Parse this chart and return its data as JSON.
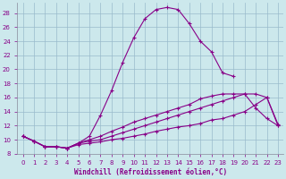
{
  "xlabel": "Windchill (Refroidissement éolien,°C)",
  "xlim": [
    -0.5,
    23.5
  ],
  "ylim": [
    8,
    29.5
  ],
  "xticks": [
    0,
    1,
    2,
    3,
    4,
    5,
    6,
    7,
    8,
    9,
    10,
    11,
    12,
    13,
    14,
    15,
    16,
    17,
    18,
    19,
    20,
    21,
    22,
    23
  ],
  "yticks": [
    8,
    10,
    12,
    14,
    16,
    18,
    20,
    22,
    24,
    26,
    28
  ],
  "bg_color": "#cce8ec",
  "line_color": "#880088",
  "grid_color": "#99bbcc",
  "c1x": [
    0,
    1,
    2,
    3,
    4,
    5,
    6,
    7,
    8,
    9,
    10,
    11,
    12,
    13,
    14,
    15,
    16,
    17,
    18,
    19
  ],
  "c1y": [
    10.5,
    9.8,
    9.0,
    9.0,
    8.8,
    9.5,
    10.5,
    13.5,
    17.0,
    21.0,
    24.5,
    27.2,
    28.5,
    28.8,
    28.5,
    26.5,
    24.0,
    22.5,
    19.5,
    19.0
  ],
  "c2x": [
    0,
    1,
    2,
    3,
    4,
    5,
    6,
    7,
    8,
    9,
    10,
    11,
    12,
    13,
    14,
    15,
    16,
    17,
    18,
    19,
    20,
    21,
    22,
    23
  ],
  "c2y": [
    10.5,
    9.8,
    9.0,
    9.0,
    8.8,
    9.5,
    10.0,
    10.5,
    11.2,
    11.8,
    12.5,
    13.0,
    13.5,
    14.0,
    14.5,
    15.0,
    15.8,
    16.2,
    16.5,
    16.5,
    16.5,
    14.5,
    13.0,
    12.0
  ],
  "c3x": [
    0,
    1,
    2,
    3,
    4,
    5,
    6,
    7,
    8,
    9,
    10,
    11,
    12,
    13,
    14,
    15,
    16,
    17,
    18,
    19,
    20,
    21,
    22,
    23
  ],
  "c3y": [
    10.5,
    9.8,
    9.0,
    9.0,
    8.8,
    9.5,
    9.8,
    10.0,
    10.5,
    11.0,
    11.5,
    12.0,
    12.5,
    13.0,
    13.5,
    14.0,
    14.5,
    15.0,
    15.5,
    16.0,
    16.5,
    16.5,
    16.0,
    12.2
  ],
  "c4x": [
    0,
    1,
    2,
    3,
    4,
    5,
    6,
    7,
    8,
    9,
    10,
    11,
    12,
    13,
    14,
    15,
    16,
    17,
    18,
    19,
    20,
    21,
    22,
    23
  ],
  "c4y": [
    10.5,
    9.8,
    9.0,
    9.0,
    8.8,
    9.3,
    9.5,
    9.7,
    10.0,
    10.2,
    10.5,
    10.8,
    11.2,
    11.5,
    11.8,
    12.0,
    12.3,
    12.8,
    13.0,
    13.5,
    14.0,
    15.0,
    16.0,
    12.0
  ]
}
